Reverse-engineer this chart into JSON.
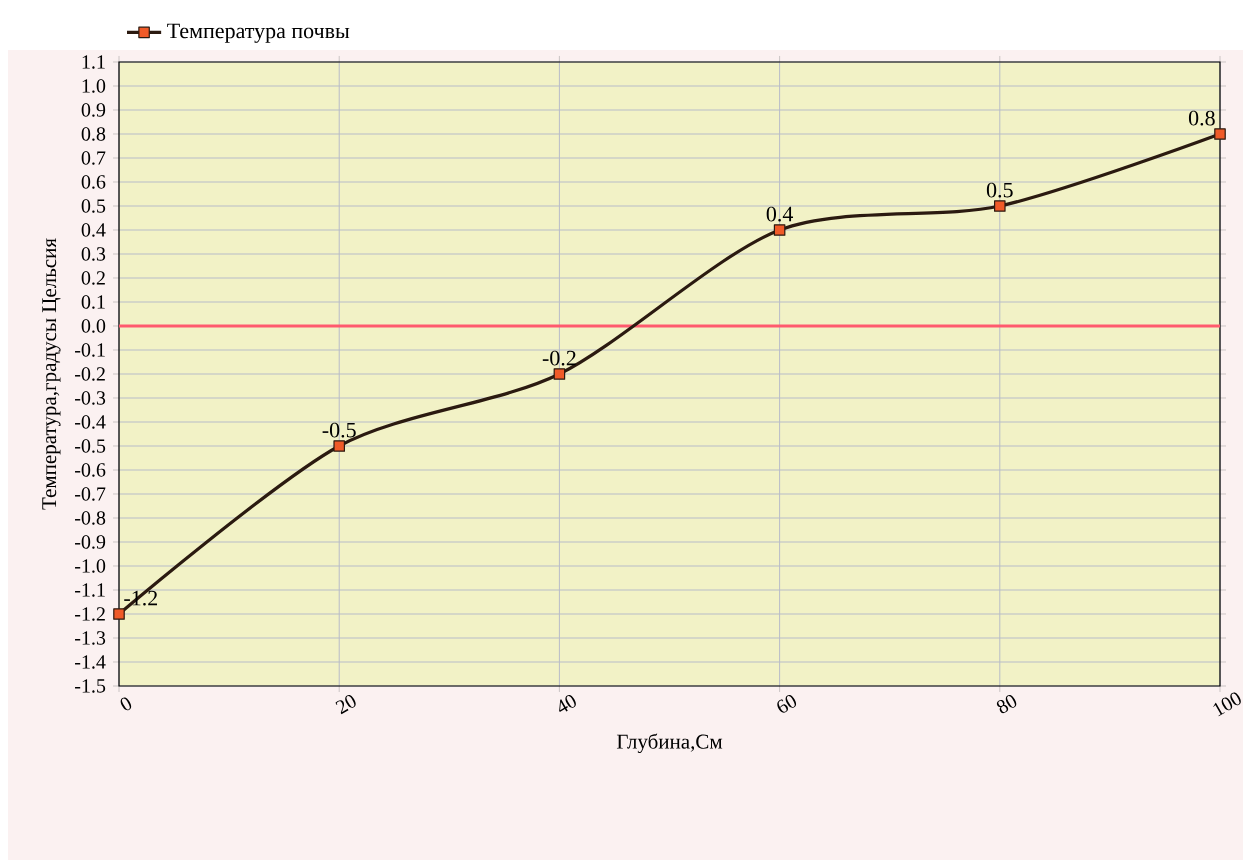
{
  "chart_data": {
    "type": "line",
    "xlabel": "Глубина,См",
    "ylabel": "Температура,градусы Цельсия",
    "x": [
      0,
      20,
      40,
      60,
      80,
      100
    ],
    "series": [
      {
        "name": "Температура почвы",
        "color": "#2b1a10",
        "values": [
          -1.2,
          -0.5,
          -0.2,
          0.4,
          0.5,
          0.8
        ]
      }
    ],
    "marker": "square",
    "line_style": "solid",
    "data_labels": true,
    "legend": "top left",
    "grid": true,
    "xlim": [
      0,
      100
    ],
    "xticks": [
      0,
      20,
      40,
      60,
      80,
      100
    ],
    "ylim": [
      -1.5,
      1.1
    ],
    "yticks": [
      -1.5,
      -1.4,
      -1.3,
      -1.2,
      -1.1,
      {
        "value": -1.0,
        "label": "-1.0"
      },
      -0.9,
      -0.8,
      -0.7,
      -0.6,
      -0.5,
      -0.4,
      -0.3,
      -0.2,
      -0.1,
      {
        "value": 0,
        "label": "0.0"
      },
      0.1,
      0.2,
      0.3,
      0.4,
      0.5,
      0.6,
      0.7,
      0.8,
      0.9,
      {
        "value": 1.0,
        "label": "1.0"
      },
      1.1
    ],
    "ref_lines": [
      {
        "axis": "y",
        "value": 0,
        "color": "#ff5a6e"
      }
    ]
  }
}
